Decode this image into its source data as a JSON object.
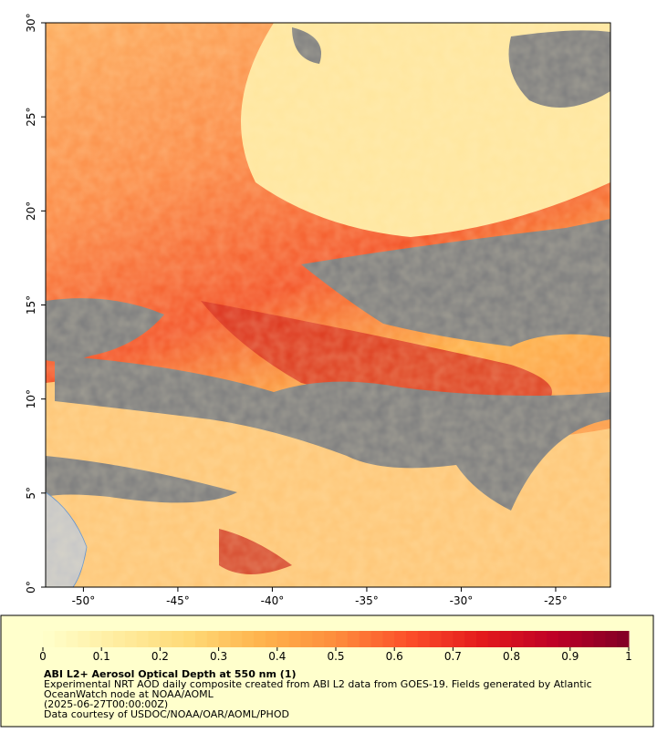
{
  "map": {
    "xlim": [
      -52,
      -22.1
    ],
    "ylim": [
      0,
      30
    ],
    "lon_ticks": [
      {
        "value": -50,
        "label": "-50°"
      },
      {
        "value": -45,
        "label": "-45°"
      },
      {
        "value": -40,
        "label": "-40°"
      },
      {
        "value": -35,
        "label": "-35°"
      },
      {
        "value": -30,
        "label": "-30°"
      },
      {
        "value": -25,
        "label": "-25°"
      }
    ],
    "lat_ticks": [
      {
        "value": 0,
        "label": "0°"
      },
      {
        "value": 5,
        "label": "5°"
      },
      {
        "value": 10,
        "label": "10°"
      },
      {
        "value": 15,
        "label": "15°"
      },
      {
        "value": 20,
        "label": "20°"
      },
      {
        "value": 25,
        "label": "25°"
      },
      {
        "value": 30,
        "label": "30°"
      }
    ]
  },
  "colorbar": {
    "lim": [
      0,
      1
    ],
    "ticks": [
      0,
      0.1,
      0.2,
      0.3,
      0.4,
      0.5,
      0.6,
      0.7,
      0.8,
      0.9,
      1
    ],
    "colors": [
      "#ffffcc",
      "#ffeda0",
      "#fed976",
      "#feb24c",
      "#fd8d3c",
      "#fc4e2a",
      "#e31a1c",
      "#bd0026",
      "#800026"
    ]
  },
  "caption": {
    "title": "ABI L2+ Aerosol Optical Depth at 550 nm (1)",
    "lines": [
      "Experimental NRT AOD daily composite created from ABI L2 data from GOES-19. Fields generated by Atlantic",
      "OceanWatch node at NOAA/AOML",
      "(2025-06-27T00:00:00Z)",
      "Data courtesy of USDOC/NOAA/OAR/AOML/PHOD"
    ]
  }
}
